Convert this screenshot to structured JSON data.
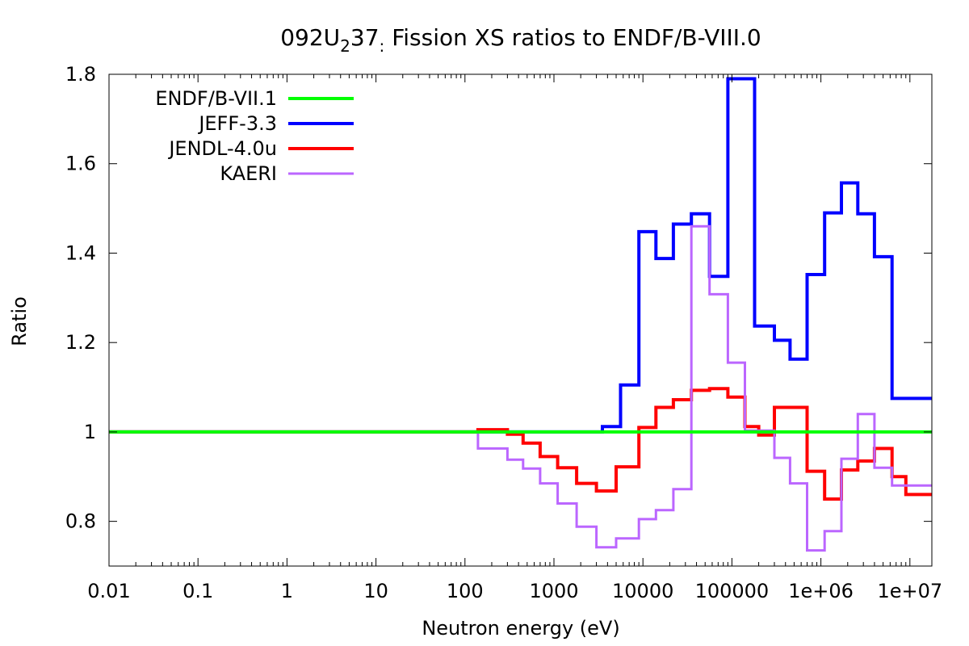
{
  "chart_data": {
    "type": "line",
    "step": true,
    "title": {
      "prefix": "092U",
      "subscript": "2",
      "suffix": "37",
      "sub2": ":",
      "rest": " Fission XS ratios to ENDF/B-VIII.0"
    },
    "xlabel": "Neutron energy (eV)",
    "ylabel": "Ratio",
    "xscale": "log",
    "xlim": [
      0.01,
      20000000
    ],
    "ylim": [
      0.7,
      1.8
    ],
    "xticks": [
      {
        "value": 0.01,
        "label": "0.01"
      },
      {
        "value": 0.1,
        "label": "0.1"
      },
      {
        "value": 1,
        "label": "1"
      },
      {
        "value": 10,
        "label": "10"
      },
      {
        "value": 100,
        "label": "100"
      },
      {
        "value": 1000,
        "label": "1000"
      },
      {
        "value": 10000,
        "label": "10000"
      },
      {
        "value": 100000,
        "label": "100000"
      },
      {
        "value": 1000000,
        "label": "1e+06"
      },
      {
        "value": 10000000,
        "label": "1e+07"
      }
    ],
    "yticks": [
      {
        "value": 0.8,
        "label": "0.8"
      },
      {
        "value": 1.0,
        "label": "1"
      },
      {
        "value": 1.2,
        "label": "1.2"
      },
      {
        "value": 1.4,
        "label": "1.4"
      },
      {
        "value": 1.6,
        "label": "1.6"
      },
      {
        "value": 1.8,
        "label": "1.8"
      }
    ],
    "grid": false,
    "legend_position": "top-left",
    "series": [
      {
        "name": "ENDF/B-VII.1",
        "color": "#00ff00",
        "width": 4,
        "x": [
          0.01,
          20000000
        ],
        "y": [
          1.0,
          1.0
        ]
      },
      {
        "name": "JEFF-3.3",
        "color": "#0000ff",
        "width": 4,
        "x": [
          0.01,
          3500,
          5600,
          9000,
          14000,
          22000,
          35000,
          56000,
          90000,
          120000,
          180000,
          300000,
          450000,
          700000,
          1100000,
          1700000,
          2600000,
          4000000,
          6300000,
          9000000,
          20000000
        ],
        "y": [
          1.0,
          1.012,
          1.105,
          1.448,
          1.388,
          1.465,
          1.488,
          1.348,
          1.79,
          1.79,
          1.237,
          1.205,
          1.163,
          1.352,
          1.49,
          1.557,
          1.488,
          1.392,
          1.075,
          1.075,
          1.075
        ]
      },
      {
        "name": "JENDL-4.0u",
        "color": "#ff0000",
        "width": 4,
        "x": [
          0.01,
          140,
          300,
          450,
          700,
          1100,
          1800,
          3000,
          5000,
          9000,
          14000,
          22000,
          35000,
          56000,
          90000,
          140000,
          200000,
          300000,
          700000,
          1100000,
          1700000,
          2600000,
          4000000,
          6300000,
          9000000,
          20000000
        ],
        "y": [
          1.0,
          1.005,
          0.995,
          0.975,
          0.945,
          0.92,
          0.885,
          0.868,
          0.922,
          1.01,
          1.055,
          1.072,
          1.093,
          1.097,
          1.078,
          1.012,
          0.993,
          1.055,
          0.912,
          0.85,
          0.915,
          0.935,
          0.963,
          0.9,
          0.86,
          0.86
        ]
      },
      {
        "name": "KAERI",
        "color": "#bb66ff",
        "width": 3,
        "x": [
          0.01,
          140,
          300,
          450,
          700,
          1100,
          1800,
          3000,
          5000,
          9000,
          14000,
          22000,
          35000,
          56000,
          90000,
          140000,
          200000,
          300000,
          450000,
          700000,
          1100000,
          1700000,
          2600000,
          4000000,
          6300000,
          9000000,
          20000000
        ],
        "y": [
          1.0,
          0.963,
          0.938,
          0.918,
          0.885,
          0.84,
          0.788,
          0.742,
          0.762,
          0.805,
          0.825,
          0.872,
          1.46,
          1.308,
          1.155,
          1.003,
          1.003,
          0.942,
          0.885,
          0.735,
          0.778,
          0.94,
          1.04,
          0.92,
          0.88,
          0.88,
          0.88
        ]
      }
    ]
  }
}
